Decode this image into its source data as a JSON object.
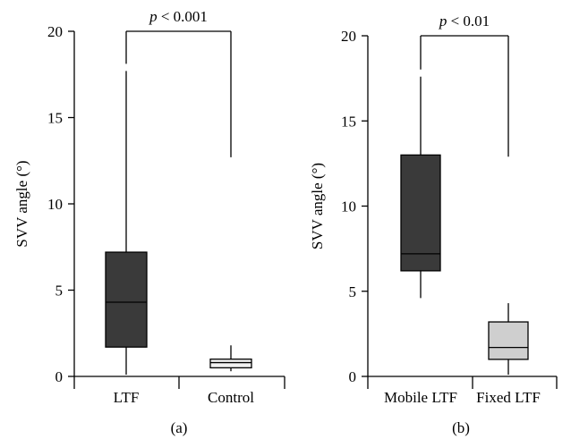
{
  "chart_data": [
    {
      "type": "box",
      "panel_label": "(a)",
      "ylabel": "SVV angle (°)",
      "ylim": [
        0,
        20
      ],
      "yticks": [
        0,
        5,
        10,
        15,
        20
      ],
      "categories": [
        "LTF",
        "Control"
      ],
      "boxes": [
        {
          "min": 0.1,
          "q1": 1.7,
          "median": 4.3,
          "q3": 7.2,
          "max": 17.7,
          "fill": "#3a3a3a",
          "median_color": "#000000"
        },
        {
          "min": 0.3,
          "q1": 0.5,
          "median": 0.8,
          "q3": 1.0,
          "max": 1.8,
          "fill": "#f2f2f2",
          "median_color": "#000000"
        }
      ],
      "significance": {
        "label_prefix": "p",
        "label_rest": " < 0.001",
        "between": [
          0,
          1
        ],
        "level": 20,
        "left_drop_to": 17.7,
        "right_drop_to": 12.7
      }
    },
    {
      "type": "box",
      "panel_label": "(b)",
      "ylabel": "SVV angle (°)",
      "ylim": [
        0,
        20
      ],
      "yticks": [
        0,
        5,
        10,
        15,
        20
      ],
      "categories": [
        "Mobile LTF",
        "Fixed LTF"
      ],
      "boxes": [
        {
          "min": 4.6,
          "q1": 6.2,
          "median": 7.2,
          "q3": 13.0,
          "max": 17.6,
          "fill": "#3a3a3a",
          "median_color": "#000000"
        },
        {
          "min": 0.1,
          "q1": 1.0,
          "median": 1.7,
          "q3": 3.2,
          "max": 4.3,
          "fill": "#cfcfcf",
          "median_color": "#000000"
        }
      ],
      "significance": {
        "label_prefix": "p",
        "label_rest": " < 0.01",
        "between": [
          0,
          1
        ],
        "level": 20,
        "left_drop_to": 17.6,
        "right_drop_to": 12.9
      }
    }
  ]
}
